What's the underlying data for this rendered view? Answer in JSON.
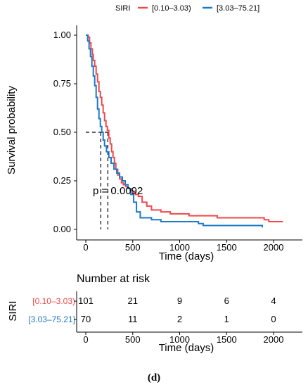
{
  "chart_data": {
    "type": "line",
    "legend": {
      "title": "SIRI",
      "placement": "top",
      "entries": [
        "[0.10–3.03)",
        "[3.03–75.21]"
      ]
    },
    "colors": {
      "group1": "#F0484B",
      "group2": "#1E78C8",
      "median_line": "#000000"
    },
    "xlabel": "Time (days)",
    "ylabel": "Survival probability",
    "xlim": [
      0,
      2100
    ],
    "ylim": [
      0,
      1
    ],
    "xticks": [
      0,
      500,
      1000,
      1500,
      2000
    ],
    "yticks": [
      "0.00",
      "0.25",
      "0.50",
      "0.75",
      "1.00"
    ],
    "grid": false,
    "pvalue": "p = 0.0092",
    "median_survival": {
      "group1": 235,
      "group2": 160,
      "survival": 0.5
    },
    "series": [
      {
        "name": "[0.10–3.03)",
        "color": "#F0484B",
        "x": [
          0,
          25,
          40,
          55,
          70,
          80,
          95,
          110,
          125,
          140,
          155,
          170,
          185,
          200,
          215,
          230,
          245,
          260,
          275,
          290,
          305,
          320,
          340,
          360,
          380,
          400,
          425,
          450,
          475,
          500,
          530,
          560,
          600,
          650,
          700,
          800,
          900,
          1000,
          1100,
          1200,
          1400,
          1650,
          1900,
          1950,
          2100
        ],
        "y": [
          1.0,
          0.99,
          0.96,
          0.93,
          0.9,
          0.87,
          0.84,
          0.8,
          0.76,
          0.71,
          0.68,
          0.64,
          0.6,
          0.56,
          0.53,
          0.51,
          0.47,
          0.44,
          0.4,
          0.37,
          0.34,
          0.31,
          0.28,
          0.26,
          0.24,
          0.23,
          0.22,
          0.21,
          0.2,
          0.19,
          0.18,
          0.17,
          0.14,
          0.12,
          0.1,
          0.09,
          0.08,
          0.08,
          0.07,
          0.07,
          0.06,
          0.06,
          0.05,
          0.04,
          0.04
        ]
      },
      {
        "name": "[3.03–75.21]",
        "color": "#1E78C8",
        "x": [
          0,
          20,
          35,
          50,
          65,
          80,
          95,
          110,
          125,
          140,
          155,
          170,
          185,
          200,
          220,
          245,
          270,
          300,
          330,
          360,
          390,
          420,
          450,
          480,
          510,
          540,
          580,
          700,
          800,
          1000,
          1200,
          1250,
          1500,
          1880
        ],
        "y": [
          1.0,
          0.97,
          0.93,
          0.89,
          0.84,
          0.79,
          0.74,
          0.68,
          0.62,
          0.57,
          0.53,
          0.5,
          0.46,
          0.43,
          0.4,
          0.37,
          0.34,
          0.31,
          0.29,
          0.27,
          0.25,
          0.23,
          0.21,
          0.18,
          0.14,
          0.09,
          0.06,
          0.05,
          0.04,
          0.04,
          0.03,
          0.02,
          0.02,
          0.01
        ]
      }
    ],
    "risk_table": {
      "title": "Number at risk",
      "ylabel": "SIRI",
      "xlabel": "Time (days)",
      "xticks": [
        0,
        500,
        1000,
        1500,
        2000
      ],
      "rows": [
        {
          "label": "[0.10–3.03)",
          "color": "#F0484B",
          "values": [
            101,
            21,
            9,
            6,
            4
          ]
        },
        {
          "label": "[3.03–75.21]",
          "color": "#1E78C8",
          "values": [
            70,
            11,
            2,
            1,
            0
          ]
        }
      ]
    }
  },
  "caption": "(d)"
}
